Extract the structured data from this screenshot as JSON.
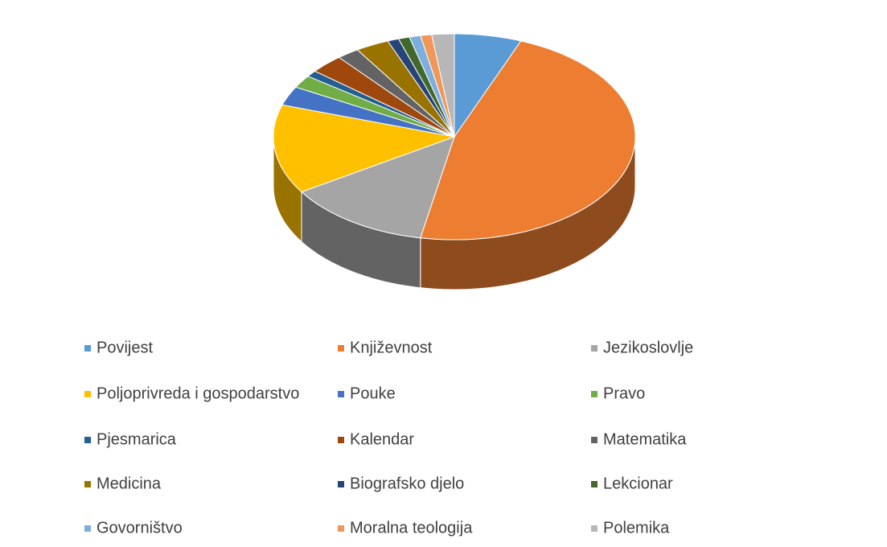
{
  "chart_data": {
    "type": "pie3d",
    "categories": [
      "Povijest",
      "Književnost",
      "Jezikoslovlje",
      "Poljoprivreda i gospodarstvo",
      "Pouke",
      "Pravo",
      "Pjesmarica",
      "Kalendar",
      "Matematika",
      "Medicina",
      "Biografsko djelo",
      "Lekcionar",
      "Govorništvo",
      "Moralna teologija",
      "Polemika"
    ],
    "values": [
      6,
      47,
      13,
      14,
      3,
      2,
      1,
      3,
      2,
      3,
      1,
      1,
      1,
      1,
      2
    ],
    "colors": [
      "#5b9bd5",
      "#ed7d31",
      "#a5a5a5",
      "#ffc000",
      "#4472c4",
      "#70ad47",
      "#255e91",
      "#9e480e",
      "#636363",
      "#997300",
      "#264478",
      "#43682b",
      "#7cafdd",
      "#f1975a",
      "#b7b7b7"
    ],
    "legend": "bottom"
  }
}
